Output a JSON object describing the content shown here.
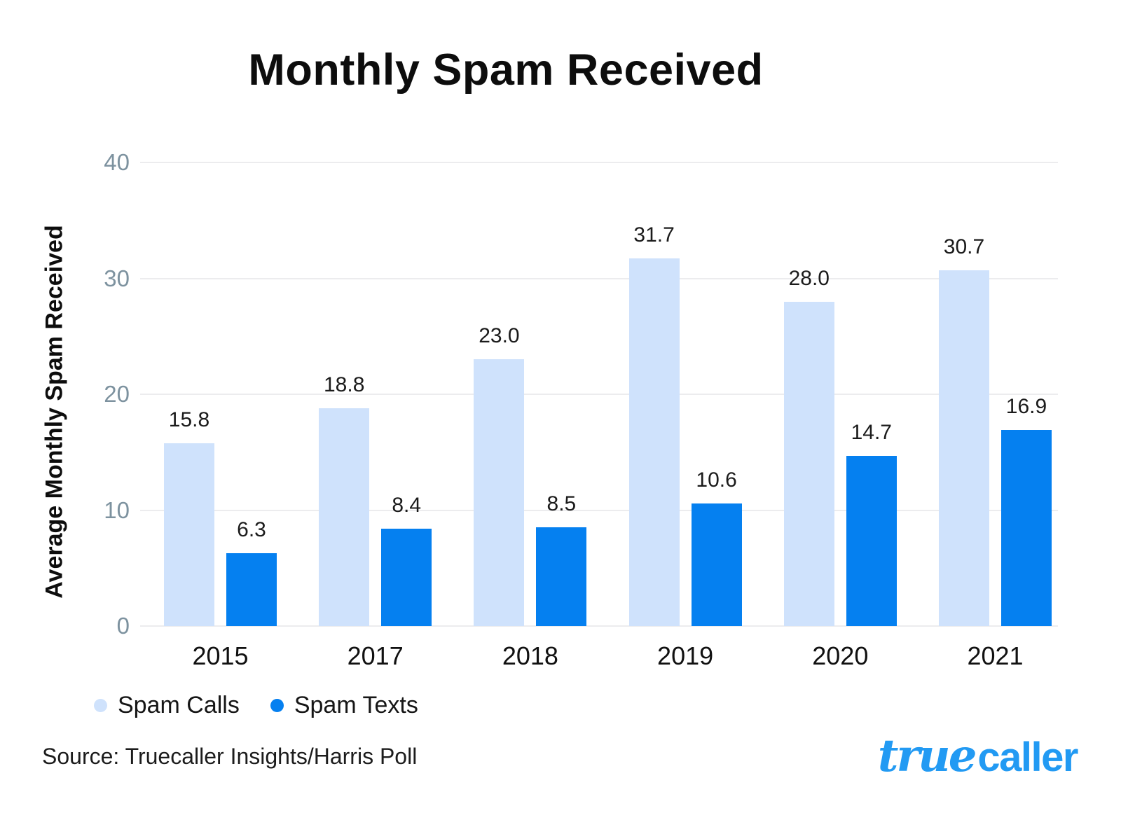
{
  "title": "Monthly Spam Received",
  "chart_data": {
    "type": "bar",
    "categories": [
      "2015",
      "2017",
      "2018",
      "2019",
      "2020",
      "2021"
    ],
    "series": [
      {
        "name": "Spam Calls",
        "color": "#cfe2fc",
        "values": [
          15.8,
          18.8,
          23.0,
          31.7,
          28.0,
          30.7
        ]
      },
      {
        "name": "Spam Texts",
        "color": "#0580f0",
        "values": [
          6.3,
          8.4,
          8.5,
          10.6,
          14.7,
          16.9
        ]
      }
    ],
    "title": "Monthly Spam Received",
    "xlabel": "",
    "ylabel": "Average Monthly Spam Received",
    "ylim": [
      0,
      40
    ],
    "yticks": [
      0,
      10,
      20,
      30,
      40
    ],
    "grid": true,
    "legend_position": "bottom-left",
    "value_labels": true,
    "value_label_decimals": 1
  },
  "legend": {
    "items": [
      {
        "label": "Spam Calls",
        "color": "#cfe2fc"
      },
      {
        "label": "Spam Texts",
        "color": "#0580f0"
      }
    ]
  },
  "footer": {
    "source": "Source: Truecaller Insights/Harris Poll",
    "logo_true": "true",
    "logo_caller": "caller"
  },
  "colors": {
    "spam_calls_bar": "#cfe2fc",
    "spam_texts_bar": "#0580f0",
    "gridline": "#ececee",
    "y_tick_text": "#7d929f",
    "axis_text": "#111111",
    "logo_blue": "#229af3",
    "background": "#ffffff"
  }
}
